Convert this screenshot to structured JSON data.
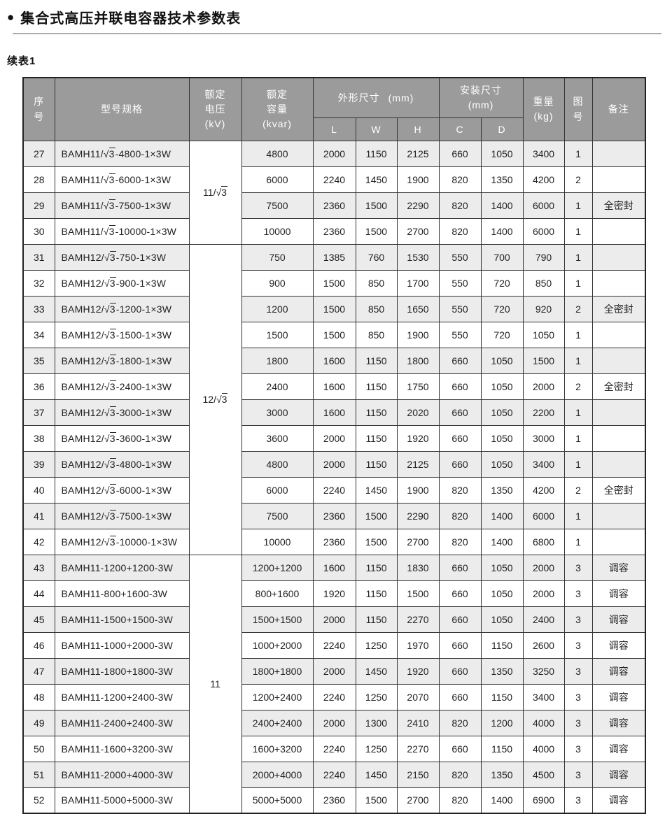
{
  "page": {
    "bullet": "●",
    "title": "集合式高压并联电容器技术参数表",
    "subtitle": "续表1"
  },
  "colors": {
    "header_bg": "#9b9b9b",
    "header_text": "#ffffff",
    "band_bg": "#ececec",
    "border": "#333333"
  },
  "table": {
    "columns": {
      "serial": "序号",
      "model": "型号规格",
      "voltage_lines": [
        "额定",
        "电压",
        "(kV)"
      ],
      "capacity_lines": [
        "额定",
        "容量",
        "(kvar)"
      ],
      "dimensions_label": "外形尺寸",
      "dimensions_unit": "(mm)",
      "dimensions_subs": [
        "L",
        "W",
        "H"
      ],
      "mounting_label": "安装尺寸",
      "mounting_unit": "(mm)",
      "mounting_subs": [
        "C",
        "D"
      ],
      "weight_lines": [
        "重量",
        "(kg)"
      ],
      "figure": "图号",
      "remark": "备注"
    },
    "voltage_groups": [
      {
        "label": "11/√3",
        "span": 4
      },
      {
        "label": "12/√3",
        "span": 12
      },
      {
        "label": "11",
        "span": 10
      }
    ],
    "rows": [
      {
        "no": "27",
        "model": "BAMH11/√3-4800-1×3W",
        "capacity": "4800",
        "L": "2000",
        "W": "1150",
        "H": "2125",
        "C": "660",
        "D": "1050",
        "weight": "3400",
        "fig": "1",
        "remark": ""
      },
      {
        "no": "28",
        "model": "BAMH11/√3-6000-1×3W",
        "capacity": "6000",
        "L": "2240",
        "W": "1450",
        "H": "1900",
        "C": "820",
        "D": "1350",
        "weight": "4200",
        "fig": "2",
        "remark": ""
      },
      {
        "no": "29",
        "model": "BAMH11/√3-7500-1×3W",
        "capacity": "7500",
        "L": "2360",
        "W": "1500",
        "H": "2290",
        "C": "820",
        "D": "1400",
        "weight": "6000",
        "fig": "1",
        "remark": "全密封"
      },
      {
        "no": "30",
        "model": "BAMH11/√3-10000-1×3W",
        "capacity": "10000",
        "L": "2360",
        "W": "1500",
        "H": "2700",
        "C": "820",
        "D": "1400",
        "weight": "6000",
        "fig": "1",
        "remark": ""
      },
      {
        "no": "31",
        "model": "BAMH12/√3-750-1×3W",
        "capacity": "750",
        "L": "1385",
        "W": "760",
        "H": "1530",
        "C": "550",
        "D": "700",
        "weight": "790",
        "fig": "1",
        "remark": ""
      },
      {
        "no": "32",
        "model": "BAMH12/√3-900-1×3W",
        "capacity": "900",
        "L": "1500",
        "W": "850",
        "H": "1700",
        "C": "550",
        "D": "720",
        "weight": "850",
        "fig": "1",
        "remark": ""
      },
      {
        "no": "33",
        "model": "BAMH12/√3-1200-1×3W",
        "capacity": "1200",
        "L": "1500",
        "W": "850",
        "H": "1650",
        "C": "550",
        "D": "720",
        "weight": "920",
        "fig": "2",
        "remark": "全密封"
      },
      {
        "no": "34",
        "model": "BAMH12/√3-1500-1×3W",
        "capacity": "1500",
        "L": "1500",
        "W": "850",
        "H": "1900",
        "C": "550",
        "D": "720",
        "weight": "1050",
        "fig": "1",
        "remark": ""
      },
      {
        "no": "35",
        "model": "BAMH12/√3-1800-1×3W",
        "capacity": "1800",
        "L": "1600",
        "W": "1150",
        "H": "1800",
        "C": "660",
        "D": "1050",
        "weight": "1500",
        "fig": "1",
        "remark": ""
      },
      {
        "no": "36",
        "model": "BAMH12/√3-2400-1×3W",
        "capacity": "2400",
        "L": "1600",
        "W": "1150",
        "H": "1750",
        "C": "660",
        "D": "1050",
        "weight": "2000",
        "fig": "2",
        "remark": "全密封"
      },
      {
        "no": "37",
        "model": "BAMH12/√3-3000-1×3W",
        "capacity": "3000",
        "L": "1600",
        "W": "1150",
        "H": "2020",
        "C": "660",
        "D": "1050",
        "weight": "2200",
        "fig": "1",
        "remark": ""
      },
      {
        "no": "38",
        "model": "BAMH12/√3-3600-1×3W",
        "capacity": "3600",
        "L": "2000",
        "W": "1150",
        "H": "1920",
        "C": "660",
        "D": "1050",
        "weight": "3000",
        "fig": "1",
        "remark": ""
      },
      {
        "no": "39",
        "model": "BAMH12/√3-4800-1×3W",
        "capacity": "4800",
        "L": "2000",
        "W": "1150",
        "H": "2125",
        "C": "660",
        "D": "1050",
        "weight": "3400",
        "fig": "1",
        "remark": ""
      },
      {
        "no": "40",
        "model": "BAMH12/√3-6000-1×3W",
        "capacity": "6000",
        "L": "2240",
        "W": "1450",
        "H": "1900",
        "C": "820",
        "D": "1350",
        "weight": "4200",
        "fig": "2",
        "remark": "全密封"
      },
      {
        "no": "41",
        "model": "BAMH12/√3-7500-1×3W",
        "capacity": "7500",
        "L": "2360",
        "W": "1500",
        "H": "2290",
        "C": "820",
        "D": "1400",
        "weight": "6000",
        "fig": "1",
        "remark": ""
      },
      {
        "no": "42",
        "model": "BAMH12/√3-10000-1×3W",
        "capacity": "10000",
        "L": "2360",
        "W": "1500",
        "H": "2700",
        "C": "820",
        "D": "1400",
        "weight": "6800",
        "fig": "1",
        "remark": ""
      },
      {
        "no": "43",
        "model": "BAMH11-1200+1200-3W",
        "capacity": "1200+1200",
        "L": "1600",
        "W": "1150",
        "H": "1830",
        "C": "660",
        "D": "1050",
        "weight": "2000",
        "fig": "3",
        "remark": "调容"
      },
      {
        "no": "44",
        "model": "BAMH11-800+1600-3W",
        "capacity": "800+1600",
        "L": "1920",
        "W": "1150",
        "H": "1500",
        "C": "660",
        "D": "1050",
        "weight": "2000",
        "fig": "3",
        "remark": "调容"
      },
      {
        "no": "45",
        "model": "BAMH11-1500+1500-3W",
        "capacity": "1500+1500",
        "L": "2000",
        "W": "1150",
        "H": "2270",
        "C": "660",
        "D": "1050",
        "weight": "2400",
        "fig": "3",
        "remark": "调容"
      },
      {
        "no": "46",
        "model": "BAMH11-1000+2000-3W",
        "capacity": "1000+2000",
        "L": "2240",
        "W": "1250",
        "H": "1970",
        "C": "660",
        "D": "1150",
        "weight": "2600",
        "fig": "3",
        "remark": "调容"
      },
      {
        "no": "47",
        "model": "BAMH11-1800+1800-3W",
        "capacity": "1800+1800",
        "L": "2000",
        "W": "1450",
        "H": "1920",
        "C": "660",
        "D": "1350",
        "weight": "3250",
        "fig": "3",
        "remark": "调容"
      },
      {
        "no": "48",
        "model": "BAMH11-1200+2400-3W",
        "capacity": "1200+2400",
        "L": "2240",
        "W": "1250",
        "H": "2070",
        "C": "660",
        "D": "1150",
        "weight": "3400",
        "fig": "3",
        "remark": "调容"
      },
      {
        "no": "49",
        "model": "BAMH11-2400+2400-3W",
        "capacity": "2400+2400",
        "L": "2000",
        "W": "1300",
        "H": "2410",
        "C": "820",
        "D": "1200",
        "weight": "4000",
        "fig": "3",
        "remark": "调容"
      },
      {
        "no": "50",
        "model": "BAMH11-1600+3200-3W",
        "capacity": "1600+3200",
        "L": "2240",
        "W": "1250",
        "H": "2270",
        "C": "660",
        "D": "1150",
        "weight": "4000",
        "fig": "3",
        "remark": "调容"
      },
      {
        "no": "51",
        "model": "BAMH11-2000+4000-3W",
        "capacity": "2000+4000",
        "L": "2240",
        "W": "1450",
        "H": "2150",
        "C": "820",
        "D": "1350",
        "weight": "4500",
        "fig": "3",
        "remark": "调容"
      },
      {
        "no": "52",
        "model": "BAMH11-5000+5000-3W",
        "capacity": "5000+5000",
        "L": "2360",
        "W": "1500",
        "H": "2700",
        "C": "820",
        "D": "1400",
        "weight": "6900",
        "fig": "3",
        "remark": "调容"
      }
    ]
  }
}
